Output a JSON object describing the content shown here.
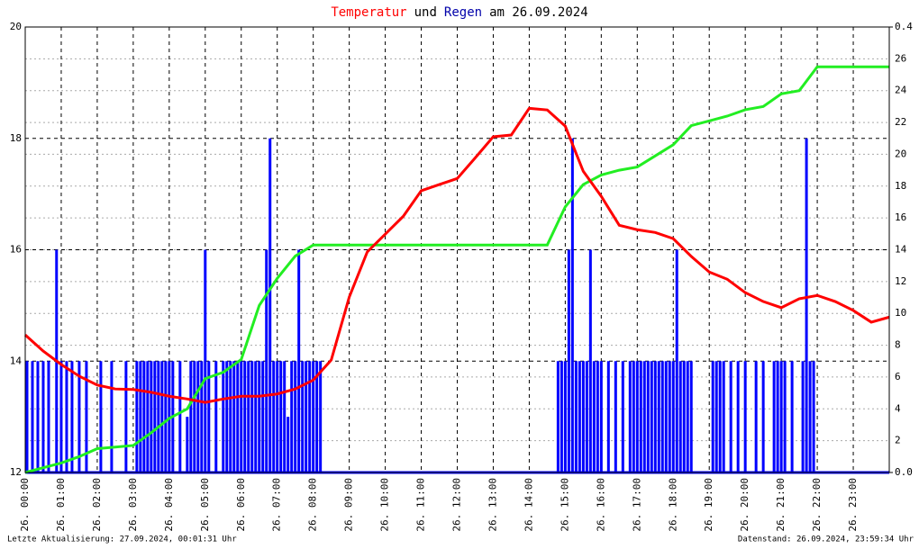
{
  "chart_data": {
    "type": "line-bar",
    "title": [
      "Temperatur",
      "und",
      "Regen",
      "am 26.09.2024"
    ],
    "title_colors": [
      "#ff0000",
      "#000000",
      "#0000aa",
      "#000000"
    ],
    "footer_left": "Letzte Aktualisierung: 27.09.2024, 00:01:31 Uhr",
    "footer_right": "Datenstand: 26.09.2024, 23:59:34 Uhr",
    "xlim": [
      0,
      24
    ],
    "xticks": [
      {
        "value": 0,
        "label": "26. 00:00"
      },
      {
        "value": 1,
        "label": "26. 01:00"
      },
      {
        "value": 2,
        "label": "26. 02:00"
      },
      {
        "value": 3,
        "label": "26. 03:00"
      },
      {
        "value": 4,
        "label": "26. 04:00"
      },
      {
        "value": 5,
        "label": "26. 05:00"
      },
      {
        "value": 6,
        "label": "26. 06:00"
      },
      {
        "value": 7,
        "label": "26. 07:00"
      },
      {
        "value": 8,
        "label": "26. 08:00"
      },
      {
        "value": 9,
        "label": "26. 09:00"
      },
      {
        "value": 10,
        "label": "26. 10:00"
      },
      {
        "value": 11,
        "label": "26. 11:00"
      },
      {
        "value": 12,
        "label": "26. 12:00"
      },
      {
        "value": 13,
        "label": "26. 13:00"
      },
      {
        "value": 14,
        "label": "26. 14:00"
      },
      {
        "value": 15,
        "label": "26. 15:00"
      },
      {
        "value": 16,
        "label": "26. 16:00"
      },
      {
        "value": 17,
        "label": "26. 17:00"
      },
      {
        "value": 18,
        "label": "26. 18:00"
      },
      {
        "value": 19,
        "label": "26. 19:00"
      },
      {
        "value": 20,
        "label": "26. 20:00"
      },
      {
        "value": 21,
        "label": "26. 21:00"
      },
      {
        "value": 22,
        "label": "26. 22:00"
      },
      {
        "value": 23,
        "label": "26. 23:00"
      }
    ],
    "ylim": [
      12,
      20
    ],
    "yticks": [
      12,
      14,
      16,
      18,
      20
    ],
    "y2lim": [
      0,
      0.4
    ],
    "y2ticks": [
      {
        "value": 0,
        "label": "0.0"
      },
      {
        "value": 0.4,
        "label": "0.4"
      }
    ],
    "y3lim": [
      0,
      28
    ],
    "y3ticks": [
      2,
      4,
      6,
      8,
      10,
      12,
      14,
      16,
      18,
      20,
      22,
      24,
      26
    ],
    "x": [
      0,
      0.5,
      1,
      1.5,
      2,
      2.5,
      3,
      3.5,
      4,
      4.5,
      5,
      5.5,
      6,
      6.5,
      7,
      7.5,
      8,
      8.5,
      9,
      9.5,
      10,
      10.5,
      11,
      11.5,
      12,
      12.5,
      13,
      13.5,
      14,
      14.5,
      15,
      15.5,
      16,
      16.5,
      17,
      17.5,
      18,
      18.5,
      19,
      19.5,
      20,
      20.5,
      21,
      21.5,
      22,
      22.5,
      23,
      23.5,
      24
    ],
    "series": [
      {
        "color": "#ff0000",
        "values": [
          14.47,
          14.18,
          13.94,
          13.73,
          13.57,
          13.5,
          13.49,
          13.44,
          13.37,
          13.32,
          13.26,
          13.32,
          13.37,
          13.37,
          13.41,
          13.5,
          13.66,
          14.02,
          15.15,
          15.96,
          16.28,
          16.6,
          17.06,
          17.17,
          17.28,
          17.65,
          18.03,
          18.06,
          18.54,
          18.51,
          18.22,
          17.41,
          16.96,
          16.44,
          16.36,
          16.31,
          16.2,
          15.88,
          15.6,
          15.47,
          15.23,
          15.07,
          14.96,
          15.12,
          15.18,
          15.07,
          14.91,
          14.7,
          14.79
        ]
      },
      {
        "color": "#0000ff",
        "axis": "y2",
        "x": [
          0.05,
          0.2,
          0.35,
          0.5,
          0.65,
          0.87,
          1.0,
          1.15,
          1.3,
          1.5,
          1.7,
          2.1,
          2.4,
          2.8,
          3.1,
          3.2,
          3.3,
          3.4,
          3.5,
          3.6,
          3.7,
          3.8,
          3.9,
          4.0,
          4.1,
          4.3,
          4.5,
          4.6,
          4.7,
          4.8,
          4.9,
          5.0,
          5.1,
          5.3,
          5.5,
          5.6,
          5.7,
          5.8,
          5.9,
          6.0,
          6.1,
          6.2,
          6.3,
          6.4,
          6.5,
          6.6,
          6.7,
          6.8,
          6.9,
          7.0,
          7.1,
          7.2,
          7.3,
          7.4,
          7.5,
          7.6,
          7.7,
          7.8,
          7.9,
          8.0,
          8.1,
          8.2,
          14.8,
          14.9,
          15.0,
          15.1,
          15.2,
          15.3,
          15.4,
          15.5,
          15.6,
          15.7,
          15.8,
          15.9,
          16.0,
          16.2,
          16.4,
          16.6,
          16.8,
          16.9,
          17.0,
          17.1,
          17.2,
          17.3,
          17.4,
          17.5,
          17.6,
          17.7,
          17.8,
          17.9,
          18.0,
          18.1,
          18.2,
          18.3,
          18.4,
          18.5,
          19.1,
          19.2,
          19.3,
          19.4,
          19.6,
          19.8,
          20.0,
          20.3,
          20.5,
          20.8,
          20.9,
          21.0,
          21.1,
          21.3,
          21.6,
          21.7,
          21.8,
          21.9
        ],
        "values": [
          0.1,
          0.1,
          0.1,
          0.1,
          0.1,
          0.2,
          0.1,
          0.1,
          0.1,
          0.1,
          0.1,
          0.1,
          0.1,
          0.1,
          0.1,
          0.1,
          0.1,
          0.1,
          0.1,
          0.1,
          0.1,
          0.1,
          0.1,
          0.1,
          0.1,
          0.1,
          0.05,
          0.1,
          0.1,
          0.1,
          0.1,
          0.2,
          0.1,
          0.1,
          0.1,
          0.1,
          0.1,
          0.1,
          0.1,
          0.1,
          0.1,
          0.1,
          0.1,
          0.1,
          0.1,
          0.1,
          0.2,
          0.3,
          0.1,
          0.1,
          0.1,
          0.1,
          0.05,
          0.1,
          0.1,
          0.2,
          0.1,
          0.1,
          0.1,
          0.1,
          0.1,
          0.1,
          0.1,
          0.1,
          0.1,
          0.2,
          0.3,
          0.1,
          0.1,
          0.1,
          0.1,
          0.2,
          0.1,
          0.1,
          0.1,
          0.1,
          0.1,
          0.1,
          0.1,
          0.1,
          0.1,
          0.1,
          0.1,
          0.1,
          0.1,
          0.1,
          0.1,
          0.1,
          0.1,
          0.1,
          0.1,
          0.2,
          0.1,
          0.1,
          0.1,
          0.1,
          0.1,
          0.1,
          0.1,
          0.1,
          0.1,
          0.1,
          0.1,
          0.1,
          0.1,
          0.1,
          0.1,
          0.1,
          0.1,
          0.1,
          0.1,
          0.3,
          0.1,
          0.1
        ]
      },
      {
        "color": "#22ee22",
        "axis": "y3",
        "values": [
          0,
          0.3,
          0.6,
          1.0,
          1.5,
          1.6,
          1.7,
          2.5,
          3.4,
          4.0,
          5.9,
          6.3,
          7.1,
          10.5,
          12.2,
          13.6,
          14.3,
          14.3,
          14.3,
          14.3,
          14.3,
          14.3,
          14.3,
          14.3,
          14.3,
          14.3,
          14.3,
          14.3,
          14.3,
          14.3,
          16.7,
          18.1,
          18.7,
          19.0,
          19.2,
          19.9,
          20.6,
          21.8,
          22.1,
          22.4,
          22.8,
          23.0,
          23.8,
          24.0,
          25.5,
          25.5,
          25.5,
          25.5,
          25.5
        ]
      }
    ]
  }
}
